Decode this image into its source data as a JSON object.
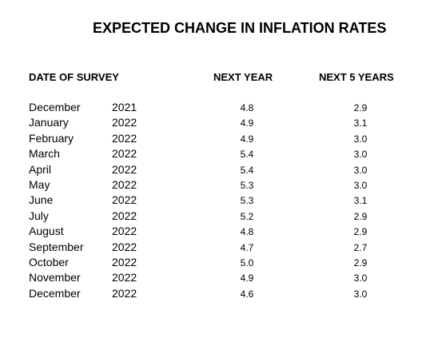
{
  "title": "EXPECTED CHANGE IN INFLATION RATES",
  "headers": {
    "date": "DATE OF SURVEY",
    "next_year": "NEXT YEAR",
    "next_5_years": "NEXT 5 YEARS"
  },
  "rows": [
    {
      "month": "December",
      "year": "2021",
      "next_year": "4.8",
      "next_5_years": "2.9"
    },
    {
      "month": "January",
      "year": "2022",
      "next_year": "4.9",
      "next_5_years": "3.1"
    },
    {
      "month": "February",
      "year": "2022",
      "next_year": "4.9",
      "next_5_years": "3.0"
    },
    {
      "month": "March",
      "year": "2022",
      "next_year": "5.4",
      "next_5_years": "3.0"
    },
    {
      "month": "April",
      "year": "2022",
      "next_year": "5.4",
      "next_5_years": "3.0"
    },
    {
      "month": "May",
      "year": "2022",
      "next_year": "5.3",
      "next_5_years": "3.0"
    },
    {
      "month": "June",
      "year": "2022",
      "next_year": "5.3",
      "next_5_years": "3.1"
    },
    {
      "month": "July",
      "year": "2022",
      "next_year": "5.2",
      "next_5_years": "2.9"
    },
    {
      "month": "August",
      "year": "2022",
      "next_year": "4.8",
      "next_5_years": "2.9"
    },
    {
      "month": "September",
      "year": "2022",
      "next_year": "4.7",
      "next_5_years": "2.7"
    },
    {
      "month": "October",
      "year": "2022",
      "next_year": "5.0",
      "next_5_years": "2.9"
    },
    {
      "month": "November",
      "year": "2022",
      "next_year": "4.9",
      "next_5_years": "3.0"
    },
    {
      "month": "December",
      "year": "2022",
      "next_year": "4.6",
      "next_5_years": "3.0"
    }
  ]
}
